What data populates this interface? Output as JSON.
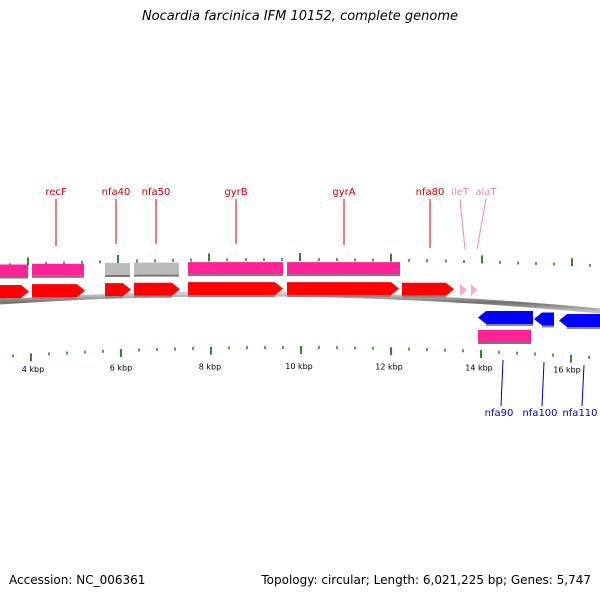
{
  "title": "Nocardia farcinica IFM 10152, complete genome",
  "accession_text": "Accession: NC_006361",
  "summary_text": "Topology: circular; Length: 6,021,225 bp; Genes: 5,747",
  "colors": {
    "forward_label": "#cc0000",
    "reverse_label": "#0000bb",
    "trna_label": "#ee88bb",
    "cds_forward": "#ff0000",
    "cds_reverse": "#0000ff",
    "gene_bar": "#ff2299",
    "pseudo_bar": "#bbbbbb",
    "trna_arrow": "#ffaacc",
    "tick": "#006600",
    "backbone": "#888888"
  },
  "scale_labels": [
    "4 kbp",
    "6 kbp",
    "8 kbp",
    "10 kbp",
    "12 kbp",
    "14 kbp",
    "16 kbp"
  ],
  "forward_features": [
    {
      "name": "recF",
      "kind": "cds",
      "label": true
    },
    {
      "name": "nfa40",
      "kind": "cds",
      "label": true
    },
    {
      "name": "nfa50",
      "kind": "cds",
      "label": true
    },
    {
      "name": "gyrB",
      "kind": "cds",
      "label": true
    },
    {
      "name": "gyrA",
      "kind": "cds",
      "label": true
    },
    {
      "name": "nfa80",
      "kind": "cds",
      "label": true
    },
    {
      "name": "ileT",
      "kind": "trna",
      "label": true
    },
    {
      "name": "alaT",
      "kind": "trna",
      "label": true
    }
  ],
  "reverse_features": [
    {
      "name": "nfa90",
      "kind": "cds",
      "label": true
    },
    {
      "name": "nfa100",
      "kind": "cds",
      "label": true
    },
    {
      "name": "nfa110",
      "kind": "cds",
      "label": true
    }
  ]
}
